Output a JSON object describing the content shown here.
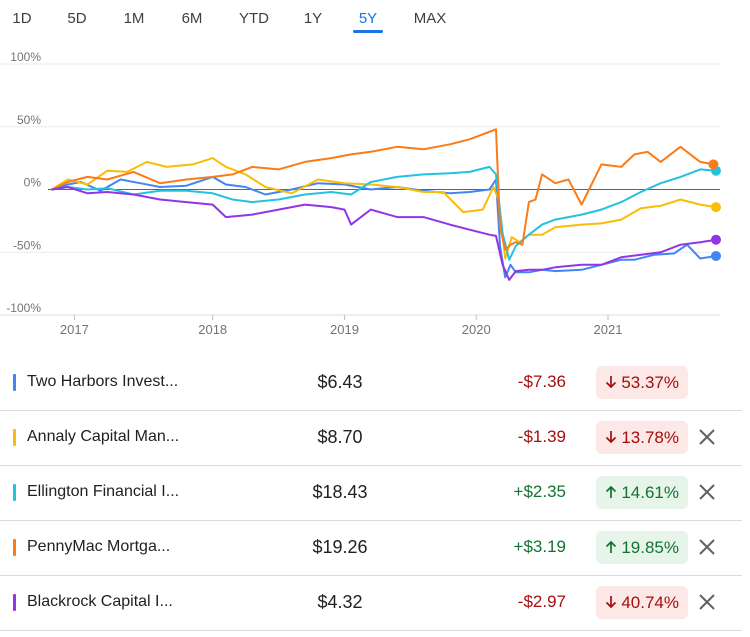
{
  "tabs": [
    {
      "label": "1D",
      "active": false
    },
    {
      "label": "5D",
      "active": false
    },
    {
      "label": "1M",
      "active": false
    },
    {
      "label": "6M",
      "active": false
    },
    {
      "label": "YTD",
      "active": false
    },
    {
      "label": "1Y",
      "active": false
    },
    {
      "label": "5Y",
      "active": true
    },
    {
      "label": "MAX",
      "active": false
    }
  ],
  "colors": {
    "accent": "#1a73e8",
    "grid": "#e8eaed",
    "baseline": "#5f6368",
    "up": "#137333",
    "down": "#a50e0e"
  },
  "chart_data": {
    "type": "line",
    "title": "",
    "xlabel": "",
    "ylabel": "",
    "x_unit": "year",
    "xlim": [
      2016.75,
      2021.85
    ],
    "ylim": [
      -100,
      100
    ],
    "yticks": [
      {
        "value": 100,
        "label": "100%"
      },
      {
        "value": 50,
        "label": "50%"
      },
      {
        "value": 0,
        "label": "0%"
      },
      {
        "value": -50,
        "label": "-50%"
      },
      {
        "value": -100,
        "label": "-100%"
      }
    ],
    "xticks": [
      {
        "value": 2016.95,
        "label": "2017"
      },
      {
        "value": 2018.0,
        "label": "2018"
      },
      {
        "value": 2019.0,
        "label": "2019"
      },
      {
        "value": 2020.0,
        "label": "2020"
      },
      {
        "value": 2021.0,
        "label": "2021"
      }
    ],
    "grid": true,
    "baseline": 0,
    "series": [
      {
        "name": "Two Harbors Investment Corp",
        "color": "#4285f4",
        "x": [
          2016.78,
          2016.9,
          2017.0,
          2017.15,
          2017.3,
          2017.45,
          2017.6,
          2017.8,
          2018.0,
          2018.1,
          2018.25,
          2018.4,
          2018.6,
          2018.8,
          2019.0,
          2019.2,
          2019.4,
          2019.6,
          2019.8,
          2019.95,
          2020.1,
          2020.15,
          2020.18,
          2020.22,
          2020.26,
          2020.3,
          2020.4,
          2020.5,
          2020.6,
          2020.8,
          2020.95,
          2021.1,
          2021.2,
          2021.35,
          2021.5,
          2021.6,
          2021.7,
          2021.82
        ],
        "y": [
          0,
          4,
          6,
          -1,
          8,
          5,
          2,
          3,
          10,
          4,
          2,
          -4,
          0,
          5,
          4,
          0,
          2,
          -1,
          -3,
          -2,
          0,
          8,
          -45,
          -70,
          -60,
          -66,
          -66,
          -64,
          -65,
          -64,
          -60,
          -56,
          -56,
          -52,
          -51,
          -44,
          -55,
          -53
        ]
      },
      {
        "name": "Annaly Capital Management",
        "color": "#fbbc04",
        "x": [
          2016.78,
          2016.9,
          2017.05,
          2017.2,
          2017.35,
          2017.5,
          2017.65,
          2017.85,
          2018.0,
          2018.1,
          2018.25,
          2018.4,
          2018.6,
          2018.8,
          2019.0,
          2019.2,
          2019.4,
          2019.6,
          2019.75,
          2019.9,
          2020.05,
          2020.13,
          2020.17,
          2020.22,
          2020.27,
          2020.33,
          2020.4,
          2020.5,
          2020.6,
          2020.8,
          2020.95,
          2021.1,
          2021.25,
          2021.4,
          2021.55,
          2021.7,
          2021.82
        ],
        "y": [
          0,
          8,
          4,
          15,
          14,
          22,
          18,
          20,
          25,
          18,
          12,
          2,
          -3,
          8,
          5,
          4,
          2,
          -2,
          -2,
          -18,
          -16,
          2,
          -8,
          -55,
          -38,
          -42,
          -36,
          -36,
          -30,
          -28,
          -27,
          -24,
          -15,
          -13,
          -8,
          -12,
          -14
        ]
      },
      {
        "name": "Ellington Financial Inc",
        "color": "#24c1e0",
        "x": [
          2016.78,
          2016.9,
          2017.05,
          2017.2,
          2017.4,
          2017.6,
          2017.8,
          2018.0,
          2018.15,
          2018.3,
          2018.5,
          2018.7,
          2018.9,
          2019.05,
          2019.2,
          2019.4,
          2019.6,
          2019.8,
          2019.95,
          2020.1,
          2020.15,
          2020.2,
          2020.25,
          2020.3,
          2020.4,
          2020.5,
          2020.6,
          2020.8,
          2020.95,
          2021.1,
          2021.25,
          2021.4,
          2021.55,
          2021.7,
          2021.82
        ],
        "y": [
          0,
          2,
          0,
          1,
          -4,
          -1,
          -1,
          -3,
          -8,
          -10,
          -8,
          -4,
          -2,
          -4,
          6,
          10,
          12,
          13,
          14,
          18,
          12,
          -35,
          -56,
          -45,
          -36,
          -28,
          -24,
          -20,
          -16,
          -10,
          -2,
          5,
          10,
          16,
          15
        ]
      },
      {
        "name": "PennyMac Mortgage Investment Trust",
        "color": "#fa7b17",
        "x": [
          2016.78,
          2016.9,
          2017.05,
          2017.2,
          2017.4,
          2017.6,
          2017.8,
          2018.0,
          2018.15,
          2018.3,
          2018.5,
          2018.7,
          2018.9,
          2019.05,
          2019.2,
          2019.4,
          2019.6,
          2019.8,
          2019.95,
          2020.1,
          2020.15,
          2020.18,
          2020.22,
          2020.26,
          2020.3,
          2020.35,
          2020.4,
          2020.45,
          2020.5,
          2020.6,
          2020.7,
          2020.8,
          2020.95,
          2021.1,
          2021.2,
          2021.3,
          2021.4,
          2021.55,
          2021.7,
          2021.8
        ],
        "y": [
          0,
          6,
          10,
          8,
          14,
          5,
          8,
          10,
          12,
          18,
          16,
          22,
          25,
          28,
          30,
          34,
          32,
          36,
          40,
          46,
          48,
          -30,
          -48,
          -44,
          -42,
          -44,
          -10,
          -8,
          12,
          5,
          8,
          -12,
          20,
          18,
          28,
          30,
          22,
          34,
          22,
          20
        ]
      },
      {
        "name": "Blackrock Capital Investment Corp",
        "color": "#9334e6",
        "x": [
          2016.78,
          2016.9,
          2017.05,
          2017.2,
          2017.4,
          2017.6,
          2017.8,
          2018.0,
          2018.1,
          2018.3,
          2018.5,
          2018.7,
          2018.9,
          2019.0,
          2019.05,
          2019.2,
          2019.4,
          2019.6,
          2019.8,
          2019.95,
          2020.1,
          2020.15,
          2020.2,
          2020.25,
          2020.3,
          2020.4,
          2020.5,
          2020.6,
          2020.8,
          2020.95,
          2021.1,
          2021.25,
          2021.4,
          2021.55,
          2021.7,
          2021.82
        ],
        "y": [
          0,
          2,
          -3,
          -2,
          -4,
          -8,
          -10,
          -12,
          -22,
          -20,
          -16,
          -12,
          -14,
          -16,
          -28,
          -16,
          -22,
          -22,
          -28,
          -32,
          -36,
          -37,
          -60,
          -72,
          -65,
          -64,
          -64,
          -62,
          -60,
          -60,
          -54,
          -52,
          -50,
          -44,
          -42,
          -40
        ]
      }
    ]
  },
  "rows": [
    {
      "name": "Two Harbors Invest...",
      "price": "$6.43",
      "change": "-$7.36",
      "percent": "53.37%",
      "direction": "down",
      "color": "#4285f4",
      "removable": false
    },
    {
      "name": "Annaly Capital Man...",
      "price": "$8.70",
      "change": "-$1.39",
      "percent": "13.78%",
      "direction": "down",
      "color": "#fbbc04",
      "removable": true
    },
    {
      "name": "Ellington Financial I...",
      "price": "$18.43",
      "change": "+$2.35",
      "percent": "14.61%",
      "direction": "up",
      "color": "#24c1e0",
      "removable": true
    },
    {
      "name": "PennyMac Mortga...",
      "price": "$19.26",
      "change": "+$3.19",
      "percent": "19.85%",
      "direction": "up",
      "color": "#fa7b17",
      "removable": true
    },
    {
      "name": "Blackrock Capital I...",
      "price": "$4.32",
      "change": "-$2.97",
      "percent": "40.74%",
      "direction": "down",
      "color": "#9334e6",
      "removable": true
    }
  ]
}
